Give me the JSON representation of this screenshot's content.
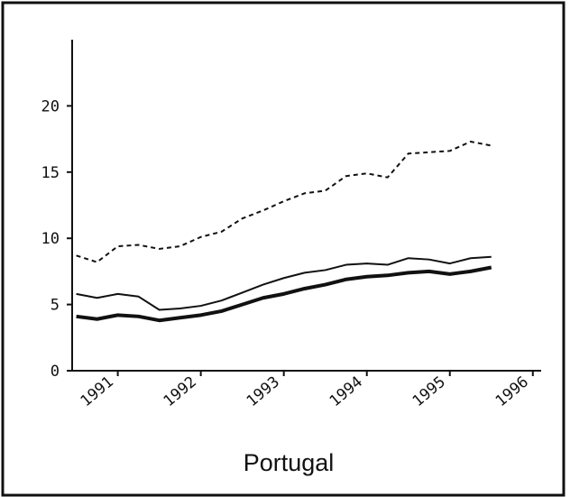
{
  "chart_data": {
    "type": "line",
    "title": "Portugal",
    "x": [
      1990.5,
      1990.75,
      1991,
      1991.25,
      1991.5,
      1991.75,
      1992,
      1992.25,
      1992.5,
      1992.75,
      1993,
      1993.25,
      1993.5,
      1993.75,
      1994,
      1994.25,
      1994.5,
      1994.75,
      1995,
      1995.25,
      1995.5
    ],
    "series": [
      {
        "color": "#111111",
        "line_style": "dashed",
        "line_width": 2,
        "values": [
          8.7,
          8.2,
          9.4,
          9.5,
          9.2,
          9.4,
          10.1,
          10.5,
          11.5,
          12.1,
          12.8,
          13.4,
          13.6,
          14.7,
          14.9,
          14.6,
          16.4,
          16.5,
          16.6,
          17.3,
          17.0
        ]
      },
      {
        "color": "#111111",
        "line_style": "solid",
        "line_width": 2,
        "values": [
          5.8,
          5.5,
          5.8,
          5.6,
          4.6,
          4.7,
          4.9,
          5.3,
          5.9,
          6.5,
          7.0,
          7.4,
          7.6,
          8.0,
          8.1,
          8.0,
          8.5,
          8.4,
          8.1,
          8.5,
          8.6
        ]
      },
      {
        "color": "#111111",
        "line_style": "solid",
        "line_width": 4,
        "values": [
          4.1,
          3.9,
          4.2,
          4.1,
          3.8,
          4.0,
          4.2,
          4.5,
          5.0,
          5.5,
          5.8,
          6.2,
          6.5,
          6.9,
          7.1,
          7.2,
          7.4,
          7.5,
          7.3,
          7.5,
          7.8
        ]
      }
    ],
    "xlim": [
      1990.45,
      1996.1
    ],
    "xticks": [
      1991,
      1992,
      1993,
      1994,
      1995,
      1996
    ],
    "ylim": [
      0,
      25
    ],
    "yticks": [
      0,
      5,
      10,
      15,
      20
    ]
  }
}
